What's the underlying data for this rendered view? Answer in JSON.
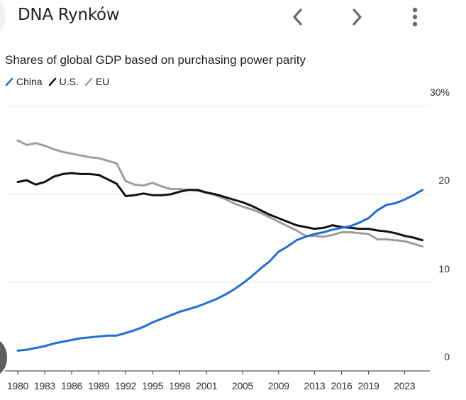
{
  "app": {
    "title": "DNA Rynków",
    "icons": {
      "back": "chevron-left-icon",
      "forward": "chevron-right-icon",
      "more": "more-vertical-icon"
    }
  },
  "chart_data": {
    "type": "line",
    "title": "Shares of global GDP based on purchasing power parity",
    "xlabel": "",
    "ylabel": "",
    "ylim": [
      0,
      30
    ],
    "xlim": [
      1980,
      2025
    ],
    "grid": true,
    "legend_position": "top-left",
    "y_ticks": [
      {
        "value": 30,
        "label": "30%"
      },
      {
        "value": 20,
        "label": "20"
      },
      {
        "value": 10,
        "label": "10"
      },
      {
        "value": 0,
        "label": "0"
      }
    ],
    "x_ticks": [
      {
        "value": 1980,
        "label": "1980"
      },
      {
        "value": 1983,
        "label": "1983"
      },
      {
        "value": 1986,
        "label": "1986"
      },
      {
        "value": 1989,
        "label": "1989"
      },
      {
        "value": 1992,
        "label": "1992"
      },
      {
        "value": 1995,
        "label": "1995"
      },
      {
        "value": 1998,
        "label": "1998"
      },
      {
        "value": 2001,
        "label": "2001"
      },
      {
        "value": 2005,
        "label": "2005"
      },
      {
        "value": 2009,
        "label": "2009"
      },
      {
        "value": 2013,
        "label": "2013"
      },
      {
        "value": 2016,
        "label": "2016"
      },
      {
        "value": 2019,
        "label": "2019"
      },
      {
        "value": 2023,
        "label": "2023"
      }
    ],
    "x": [
      1980,
      1981,
      1982,
      1983,
      1984,
      1985,
      1986,
      1987,
      1988,
      1989,
      1990,
      1991,
      1992,
      1993,
      1994,
      1995,
      1996,
      1997,
      1998,
      1999,
      2000,
      2001,
      2002,
      2003,
      2004,
      2005,
      2006,
      2007,
      2008,
      2009,
      2010,
      2011,
      2012,
      2013,
      2014,
      2015,
      2016,
      2017,
      2018,
      2019,
      2020,
      2021,
      2022,
      2023,
      2024,
      2025
    ],
    "series": [
      {
        "name": "China",
        "color": "#1f6fd6",
        "values": [
          2.3,
          2.4,
          2.6,
          2.8,
          3.1,
          3.3,
          3.5,
          3.7,
          3.8,
          3.9,
          4.0,
          4.0,
          4.3,
          4.6,
          5.0,
          5.5,
          5.9,
          6.3,
          6.7,
          7.0,
          7.3,
          7.7,
          8.1,
          8.6,
          9.2,
          9.9,
          10.7,
          11.6,
          12.4,
          13.5,
          14.1,
          14.8,
          15.2,
          15.5,
          15.7,
          16.0,
          16.2,
          16.4,
          16.8,
          17.3,
          18.2,
          18.8,
          19.0,
          19.4,
          19.9,
          20.5
        ]
      },
      {
        "name": "U.S.",
        "color": "#111111",
        "values": [
          21.4,
          21.6,
          21.1,
          21.4,
          22.0,
          22.3,
          22.4,
          22.3,
          22.3,
          22.2,
          21.7,
          21.2,
          19.8,
          19.9,
          20.1,
          19.9,
          19.9,
          20.0,
          20.3,
          20.5,
          20.5,
          20.2,
          20.0,
          19.7,
          19.4,
          19.1,
          18.7,
          18.2,
          17.7,
          17.3,
          16.9,
          16.5,
          16.3,
          16.1,
          16.2,
          16.5,
          16.3,
          16.2,
          16.1,
          16.1,
          15.9,
          15.8,
          15.6,
          15.3,
          15.1,
          14.8
        ]
      },
      {
        "name": "EU",
        "color": "#9e9e9e",
        "values": [
          26.1,
          25.6,
          25.8,
          25.5,
          25.1,
          24.8,
          24.6,
          24.4,
          24.2,
          24.1,
          23.8,
          23.5,
          21.5,
          21.1,
          21.0,
          21.3,
          20.9,
          20.6,
          20.6,
          20.5,
          20.4,
          20.2,
          19.9,
          19.5,
          19.0,
          18.6,
          18.3,
          17.9,
          17.4,
          16.9,
          16.4,
          15.9,
          15.3,
          15.3,
          15.2,
          15.4,
          15.7,
          15.7,
          15.6,
          15.5,
          14.9,
          14.9,
          14.8,
          14.7,
          14.4,
          14.1
        ]
      }
    ]
  }
}
